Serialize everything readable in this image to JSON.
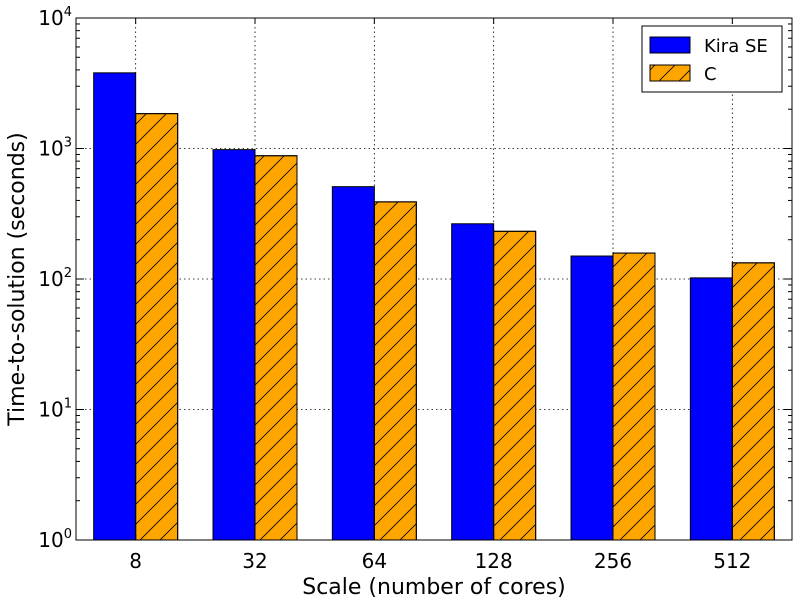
{
  "chart_data": {
    "type": "bar",
    "title": "",
    "xlabel": "Scale (number of cores)",
    "ylabel": "Time-to-solution (seconds)",
    "categories": [
      "8",
      "32",
      "64",
      "128",
      "256",
      "512"
    ],
    "y_scale": "log",
    "ylim": [
      1,
      10000
    ],
    "y_ticks": [
      {
        "base": "10",
        "exp": "0",
        "value": 1
      },
      {
        "base": "10",
        "exp": "1",
        "value": 10
      },
      {
        "base": "10",
        "exp": "2",
        "value": 100
      },
      {
        "base": "10",
        "exp": "3",
        "value": 1000
      },
      {
        "base": "10",
        "exp": "4",
        "value": 10000
      }
    ],
    "grid": true,
    "legend_position": "top-right",
    "series": [
      {
        "name": "Kira SE",
        "color": "#0000ff",
        "hatch": "none",
        "values": [
          3800,
          980,
          510,
          265,
          150,
          102
        ]
      },
      {
        "name": "C",
        "color": "#ffa500",
        "hatch": "diagonal",
        "values": [
          1850,
          880,
          390,
          232,
          158,
          133
        ]
      }
    ]
  }
}
